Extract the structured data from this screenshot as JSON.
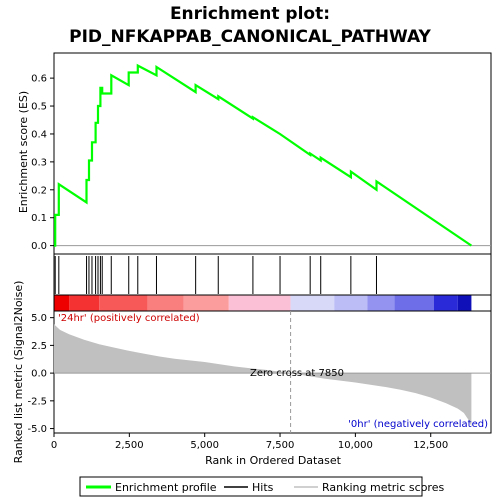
{
  "chart_data": {
    "type": "line",
    "title_line1": "Enrichment plot:",
    "title_line2": "PID_NFKAPPAB_CANONICAL_PATHWAY",
    "es_panel": {
      "ylabel": "Enrichment score (ES)",
      "ylim": [
        -0.03,
        0.69
      ],
      "yticks": [
        0.0,
        0.1,
        0.2,
        0.3,
        0.4,
        0.5,
        0.6
      ],
      "ytick_labels": [
        "0.0",
        "0.1",
        "0.2",
        "0.3",
        "0.4",
        "0.5",
        "0.6"
      ],
      "color": "#00ff00",
      "series": [
        {
          "x": [
            0,
            40,
            40,
            160,
            160,
            1080,
            1080,
            1160,
            1160,
            1260,
            1260,
            1380,
            1380,
            1460,
            1460,
            1540,
            1540,
            1600,
            1600,
            1900,
            1900,
            2480,
            2480,
            2780,
            2780,
            3400,
            3400,
            4700,
            4700,
            5450,
            5450,
            6600,
            6600,
            7500,
            7500,
            8500,
            8500,
            8850,
            8850,
            9850,
            9850,
            10700,
            10700,
            13850
          ],
          "y": [
            0,
            0,
            0.11,
            0.11,
            0.22,
            0.155,
            0.235,
            0.235,
            0.305,
            0.305,
            0.37,
            0.37,
            0.44,
            0.44,
            0.5,
            0.5,
            0.565,
            0.565,
            0.545,
            0.545,
            0.61,
            0.575,
            0.62,
            0.62,
            0.645,
            0.61,
            0.64,
            0.55,
            0.575,
            0.525,
            0.535,
            0.455,
            0.46,
            0.4,
            0.4,
            0.325,
            0.33,
            0.305,
            0.315,
            0.245,
            0.265,
            0.2,
            0.23,
            0.0
          ]
        }
      ]
    },
    "hits": {
      "positions": [
        40,
        160,
        1080,
        1160,
        1260,
        1380,
        1460,
        1540,
        1600,
        1900,
        2480,
        2780,
        3400,
        4700,
        5450,
        6600,
        7500,
        8500,
        8850,
        9850,
        10700
      ]
    },
    "color_bar": {
      "segments": [
        {
          "x0": 0,
          "x1": 500,
          "color": "#ee0000"
        },
        {
          "x0": 500,
          "x1": 1500,
          "color": "#f43232"
        },
        {
          "x0": 1500,
          "x1": 3100,
          "color": "#f75858"
        },
        {
          "x0": 3100,
          "x1": 4300,
          "color": "#f97e7e"
        },
        {
          "x0": 4300,
          "x1": 5800,
          "color": "#fb9d9d"
        },
        {
          "x0": 5800,
          "x1": 7850,
          "color": "#fcc0d6"
        },
        {
          "x0": 7850,
          "x1": 9300,
          "color": "#d8d8f8"
        },
        {
          "x0": 9300,
          "x1": 10400,
          "color": "#bcbcf6"
        },
        {
          "x0": 10400,
          "x1": 11300,
          "color": "#9494f0"
        },
        {
          "x0": 11300,
          "x1": 12600,
          "color": "#6e6ee8"
        },
        {
          "x0": 12600,
          "x1": 13400,
          "color": "#2a2ad8"
        },
        {
          "x0": 13400,
          "x1": 13850,
          "color": "#1010b8"
        }
      ]
    },
    "metric_panel": {
      "ylabel": "Ranked list metric (Signal2Noise)",
      "ylim": [
        -5.4,
        5.6
      ],
      "yticks": [
        5.0,
        2.5,
        0.0,
        -2.5,
        -5.0
      ],
      "ytick_labels": [
        "5.0",
        "2.5",
        "0.0",
        "-2.5",
        "-5.0"
      ],
      "zero_cross_rank": 7850,
      "positive_label": "'24hr' (positively correlated)",
      "negative_label": "'0hr' (negatively correlated)",
      "zero_cross_label": "Zero cross at 7850",
      "fill_color": "#c0c0c0",
      "curve": {
        "x": [
          0,
          200,
          500,
          1000,
          1500,
          2000,
          2500,
          3000,
          3500,
          4000,
          5000,
          6000,
          7000,
          7850,
          8500,
          9000,
          10000,
          11000,
          11500,
          12000,
          12500,
          13000,
          13400,
          13600,
          13750,
          13850
        ],
        "y": [
          4.4,
          3.9,
          3.5,
          3.0,
          2.6,
          2.3,
          2.0,
          1.75,
          1.5,
          1.3,
          1.0,
          0.6,
          0.3,
          0.0,
          -0.3,
          -0.5,
          -0.85,
          -1.25,
          -1.5,
          -1.8,
          -2.2,
          -2.7,
          -3.2,
          -3.6,
          -4.2,
          -4.8
        ]
      }
    },
    "xaxis": {
      "xlabel": "Rank in Ordered Dataset",
      "xlim": [
        0,
        14500
      ],
      "xticks": [
        0,
        2500,
        5000,
        7500,
        10000,
        12500
      ],
      "xtick_labels": [
        "0",
        "2,500",
        "5,000",
        "7,500",
        "10,000",
        "12,500"
      ]
    },
    "legend": {
      "items": [
        "Enrichment profile",
        "Hits",
        "Ranking metric scores"
      ],
      "placement": "bottom"
    }
  }
}
